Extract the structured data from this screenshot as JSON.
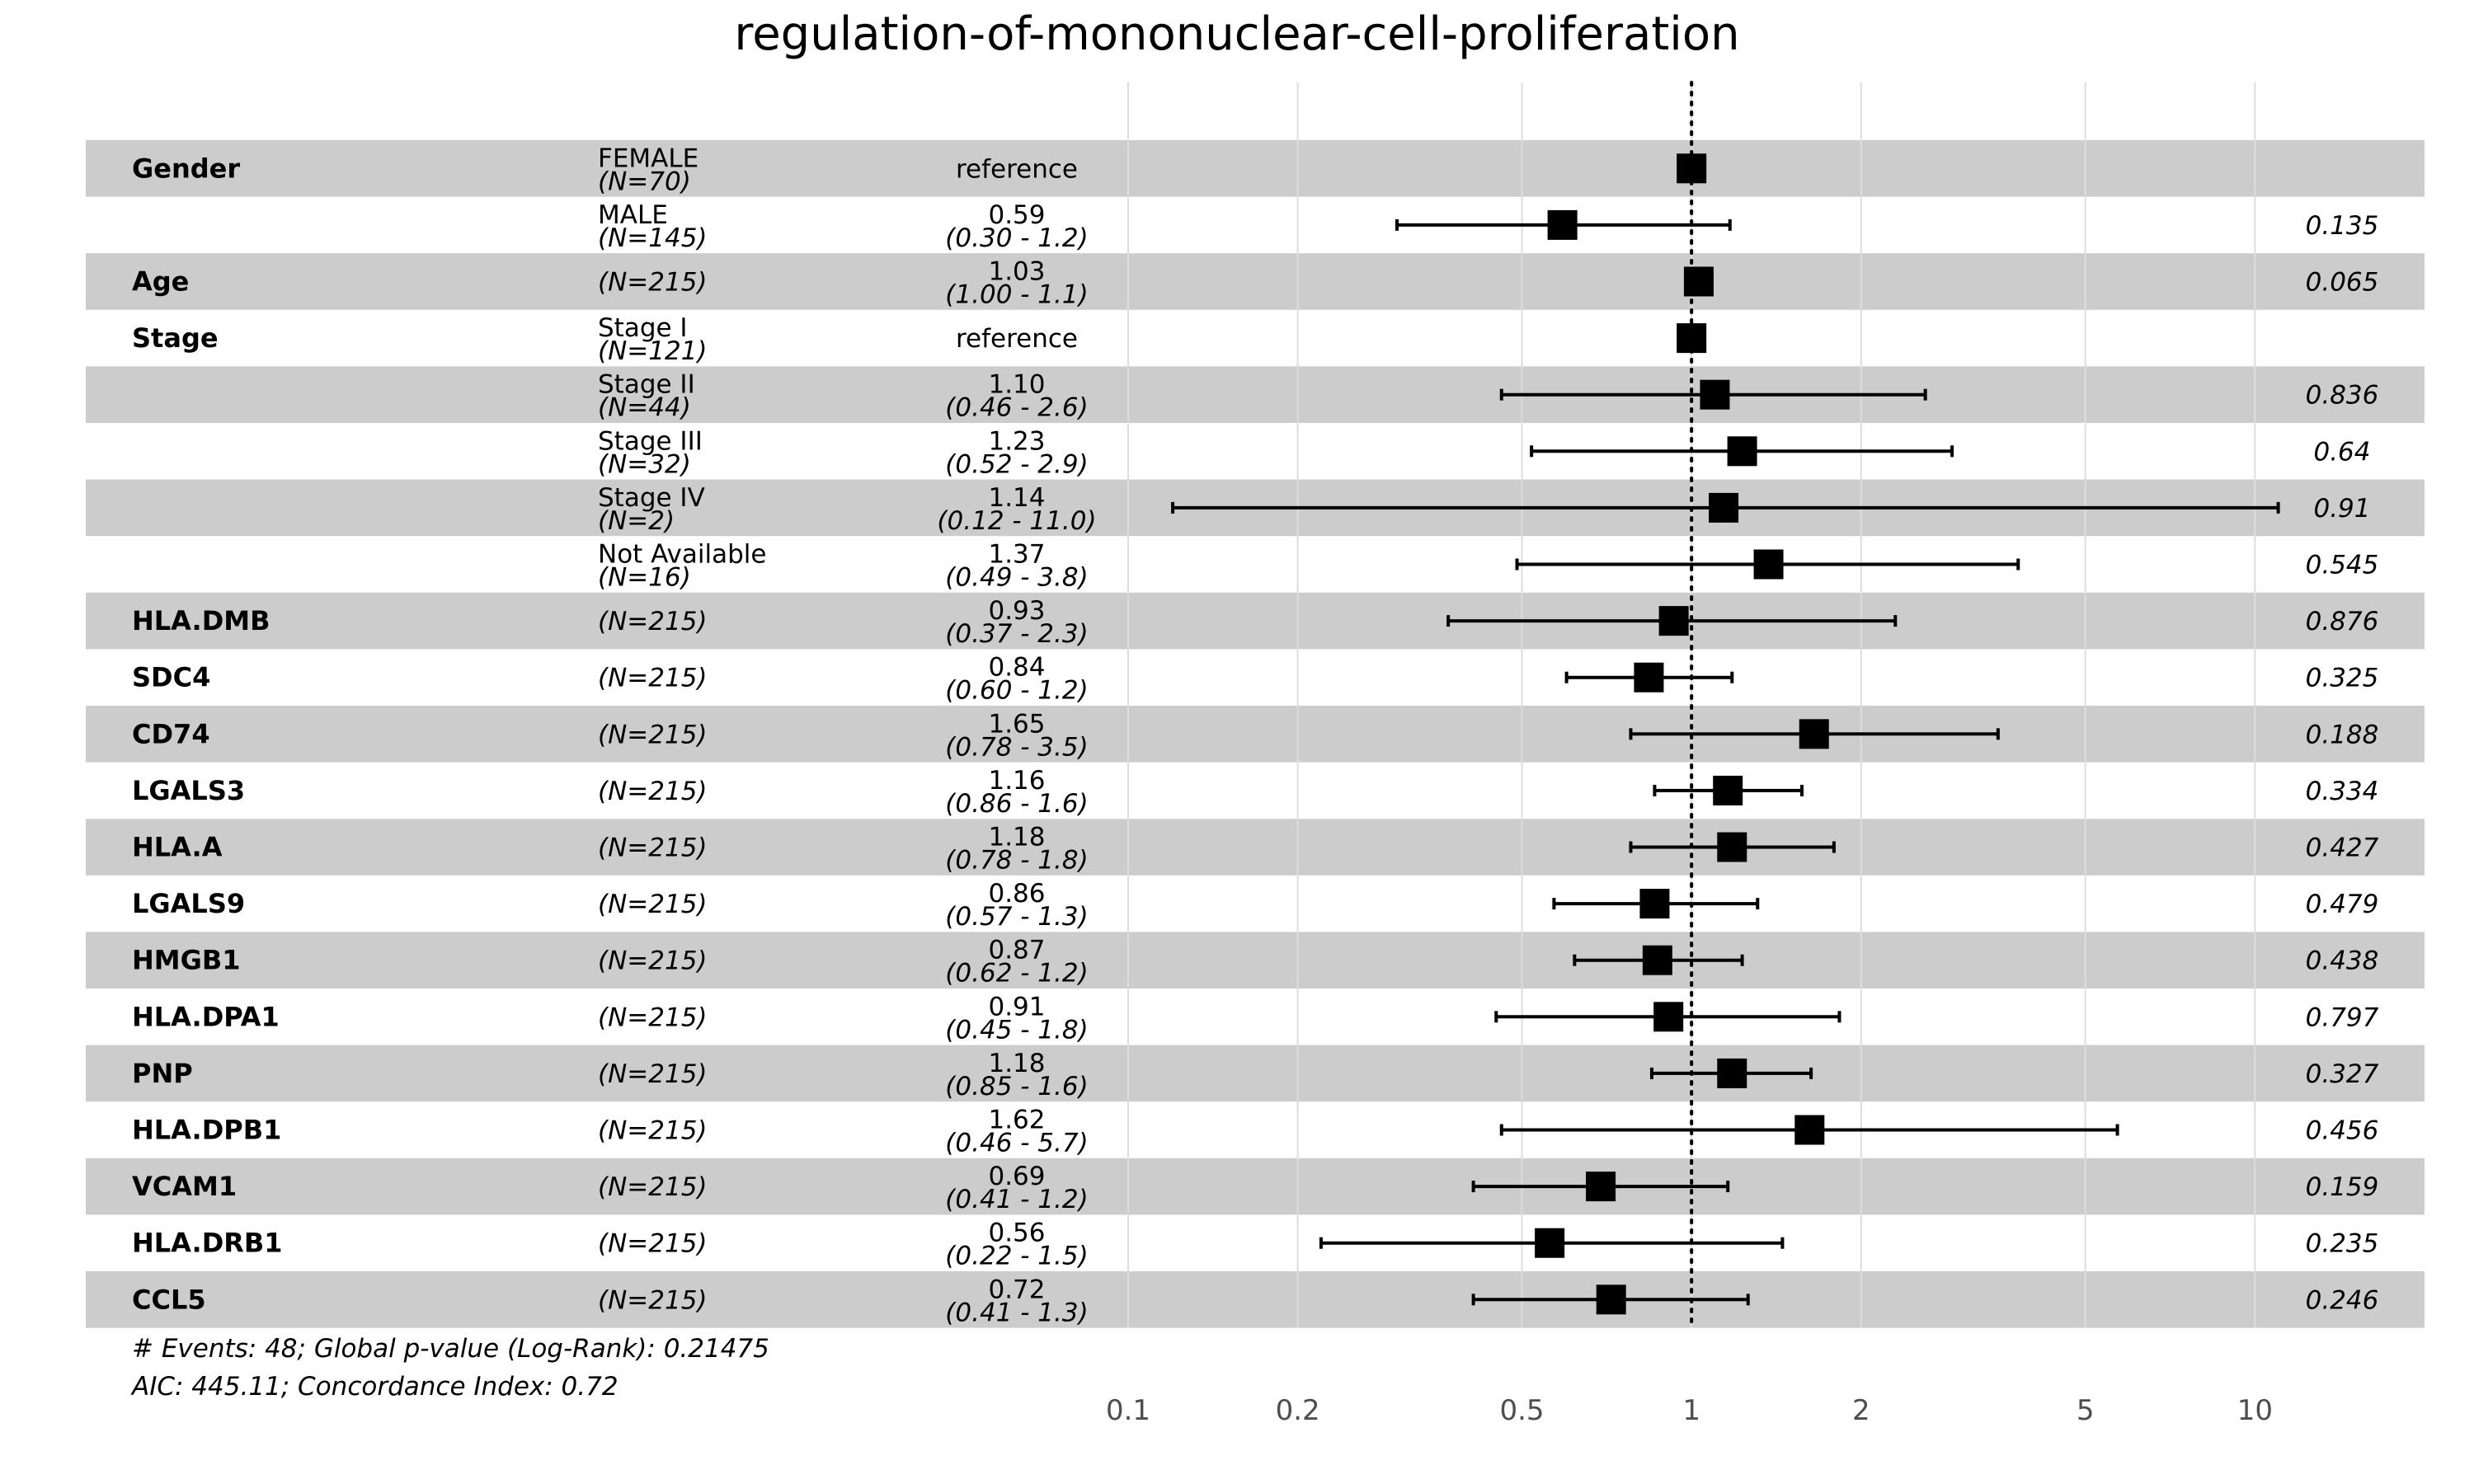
{
  "chart_data": {
    "type": "forest",
    "title": "regulation-of-mononuclear-cell-proliferation",
    "x_scale": "log",
    "xlim": [
      0.1,
      20
    ],
    "x_ticks": [
      0.1,
      0.2,
      0.5,
      1,
      2,
      5,
      10
    ],
    "x_tick_labels": [
      "0.1",
      "0.2",
      "0.5",
      "1",
      "2",
      "5",
      "10"
    ],
    "reference_line": 1,
    "rows": [
      {
        "var": "Gender",
        "level": "FEMALE",
        "n": "(N=70)",
        "est": "reference",
        "ci": "",
        "p": "",
        "hr": 1.0,
        "lo": null,
        "hi": null
      },
      {
        "var": "",
        "level": "MALE",
        "n": "(N=145)",
        "est": "0.59",
        "ci": "(0.30 -  1.2)",
        "p": "0.135",
        "hr": 0.59,
        "lo": 0.3,
        "hi": 1.17
      },
      {
        "var": "Age",
        "level": "",
        "n": "(N=215)",
        "est": "1.03",
        "ci": "(1.00 -  1.1)",
        "p": "0.065",
        "hr": 1.03,
        "lo": null,
        "hi": null
      },
      {
        "var": "Stage",
        "level": "Stage I",
        "n": "(N=121)",
        "est": "reference",
        "ci": "",
        "p": "",
        "hr": 1.0,
        "lo": null,
        "hi": null
      },
      {
        "var": "",
        "level": "Stage II",
        "n": "(N=44)",
        "est": "1.10",
        "ci": "(0.46 -  2.6)",
        "p": "0.836",
        "hr": 1.1,
        "lo": 0.46,
        "hi": 2.6
      },
      {
        "var": "",
        "level": "Stage III",
        "n": "(N=32)",
        "est": "1.23",
        "ci": "(0.52 -  2.9)",
        "p": "0.64",
        "hr": 1.23,
        "lo": 0.52,
        "hi": 2.9
      },
      {
        "var": "",
        "level": "Stage IV",
        "n": "(N=2)",
        "est": "1.14",
        "ci": "(0.12 - 11.0)",
        "p": "0.91",
        "hr": 1.14,
        "lo": 0.12,
        "hi": 11.0
      },
      {
        "var": "",
        "level": "Not Available",
        "n": "(N=16)",
        "est": "1.37",
        "ci": "(0.49 -  3.8)",
        "p": "0.545",
        "hr": 1.37,
        "lo": 0.49,
        "hi": 3.8
      },
      {
        "var": "HLA.DMB",
        "level": "",
        "n": "(N=215)",
        "est": "0.93",
        "ci": "(0.37 -  2.3)",
        "p": "0.876",
        "hr": 0.93,
        "lo": 0.37,
        "hi": 2.3
      },
      {
        "var": "SDC4",
        "level": "",
        "n": "(N=215)",
        "est": "0.84",
        "ci": "(0.60 -  1.2)",
        "p": "0.325",
        "hr": 0.84,
        "lo": 0.6,
        "hi": 1.18
      },
      {
        "var": "CD74",
        "level": "",
        "n": "(N=215)",
        "est": "1.65",
        "ci": "(0.78 -  3.5)",
        "p": "0.188",
        "hr": 1.65,
        "lo": 0.78,
        "hi": 3.5
      },
      {
        "var": "LGALS3",
        "level": "",
        "n": "(N=215)",
        "est": "1.16",
        "ci": "(0.86 -  1.6)",
        "p": "0.334",
        "hr": 1.16,
        "lo": 0.86,
        "hi": 1.57
      },
      {
        "var": "HLA.A",
        "level": "",
        "n": "(N=215)",
        "est": "1.18",
        "ci": "(0.78 -  1.8)",
        "p": "0.427",
        "hr": 1.18,
        "lo": 0.78,
        "hi": 1.79
      },
      {
        "var": "LGALS9",
        "level": "",
        "n": "(N=215)",
        "est": "0.86",
        "ci": "(0.57 -  1.3)",
        "p": "0.479",
        "hr": 0.86,
        "lo": 0.57,
        "hi": 1.31
      },
      {
        "var": "HMGB1",
        "level": "",
        "n": "(N=215)",
        "est": "0.87",
        "ci": "(0.62 -  1.2)",
        "p": "0.438",
        "hr": 0.87,
        "lo": 0.62,
        "hi": 1.23
      },
      {
        "var": "HLA.DPA1",
        "level": "",
        "n": "(N=215)",
        "est": "0.91",
        "ci": "(0.45 -  1.8)",
        "p": "0.797",
        "hr": 0.91,
        "lo": 0.45,
        "hi": 1.83
      },
      {
        "var": "PNP",
        "level": "",
        "n": "(N=215)",
        "est": "1.18",
        "ci": "(0.85 -  1.6)",
        "p": "0.327",
        "hr": 1.18,
        "lo": 0.85,
        "hi": 1.63
      },
      {
        "var": "HLA.DPB1",
        "level": "",
        "n": "(N=215)",
        "est": "1.62",
        "ci": "(0.46 -  5.7)",
        "p": "0.456",
        "hr": 1.62,
        "lo": 0.46,
        "hi": 5.7
      },
      {
        "var": "VCAM1",
        "level": "",
        "n": "(N=215)",
        "est": "0.69",
        "ci": "(0.41 -  1.2)",
        "p": "0.159",
        "hr": 0.69,
        "lo": 0.41,
        "hi": 1.16
      },
      {
        "var": "HLA.DRB1",
        "level": "",
        "n": "(N=215)",
        "est": "0.56",
        "ci": "(0.22 -  1.5)",
        "p": "0.235",
        "hr": 0.56,
        "lo": 0.22,
        "hi": 1.45
      },
      {
        "var": "CCL5",
        "level": "",
        "n": "(N=215)",
        "est": "0.72",
        "ci": "(0.41 -  1.3)",
        "p": "0.246",
        "hr": 0.72,
        "lo": 0.41,
        "hi": 1.26
      }
    ],
    "footer": [
      "# Events: 48; Global p-value (Log-Rank): 0.21475",
      "AIC: 445.11; Concordance Index: 0.72"
    ],
    "colors": {
      "stripe": "#cccccc",
      "marker": "#000000",
      "grid": "#dddddd",
      "tick": "#4d4d4d"
    }
  }
}
